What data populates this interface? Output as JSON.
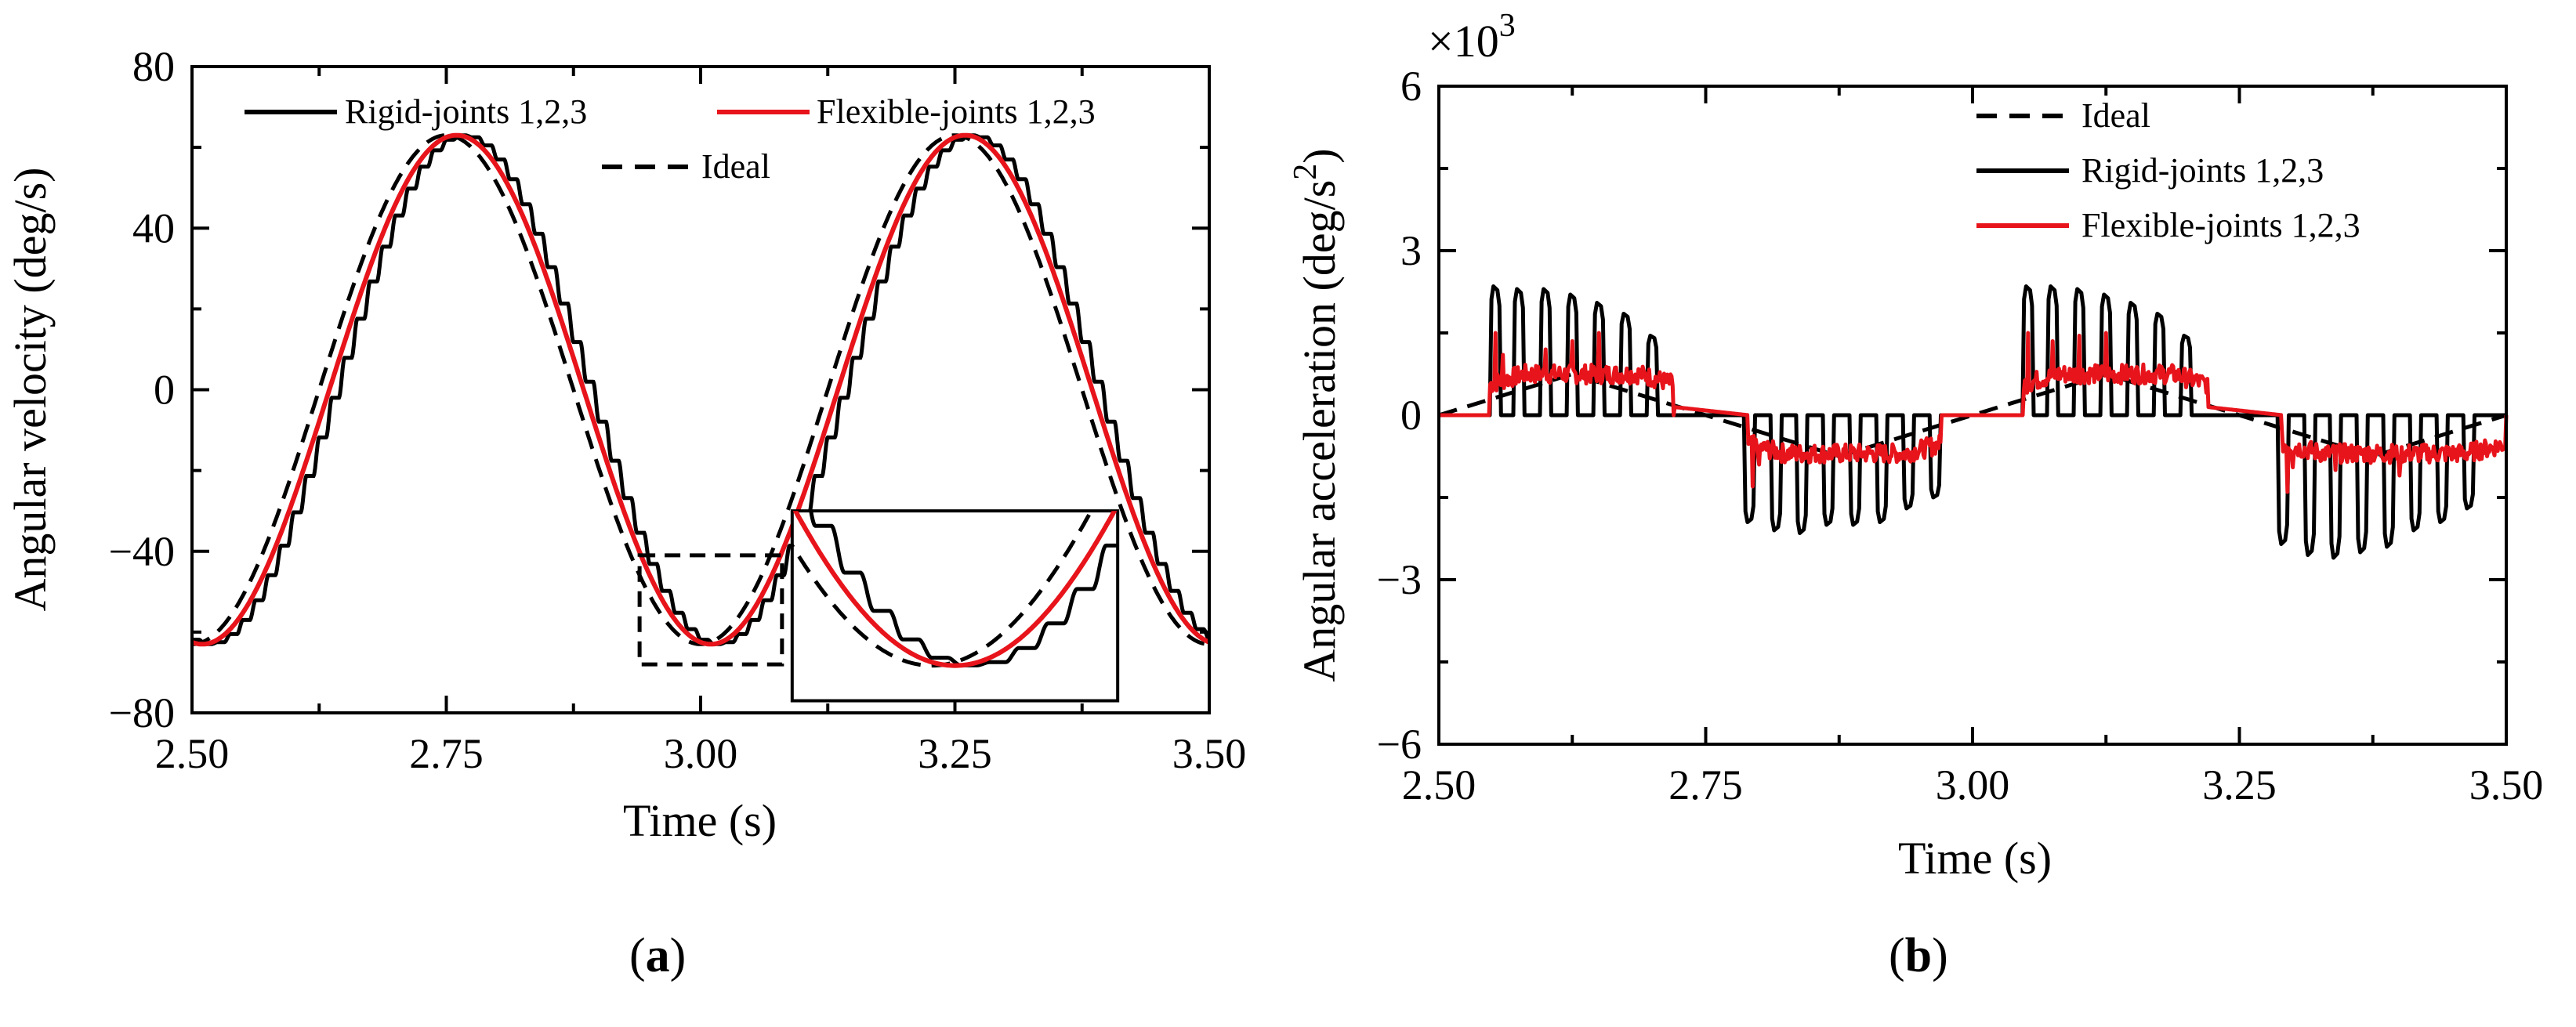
{
  "colors": {
    "rigid": "#000000",
    "flexible": "#e8141b",
    "ideal": "#000000"
  },
  "chart_data": [
    {
      "id": "a",
      "type": "line",
      "subfigure_label": "a",
      "xlabel": "Time (s)",
      "ylabel": "Angular velocity (deg/s)",
      "xlim": [
        2.5,
        3.5
      ],
      "ylim": [
        -80,
        80
      ],
      "xticks": [
        "2.50",
        "2.75",
        "3.00",
        "3.25",
        "3.50"
      ],
      "yticks": [
        "−80",
        "−40",
        "0",
        "40",
        "80"
      ],
      "legend": {
        "rigid": "Rigid-joints 1,2,3",
        "flexible": "Flexible-joints 1,2,3",
        "ideal": "Ideal"
      },
      "series": [
        {
          "name": "Ideal",
          "style": "dashed",
          "model": "sine",
          "amplitude": 63,
          "period": 0.5,
          "peak_at": 2.75,
          "x_range": [
            2.5,
            3.5
          ]
        },
        {
          "name": "Rigid-joints 1,2,3",
          "style": "staircase",
          "model": "sine",
          "amplitude": 63,
          "period": 0.5,
          "peak_at": 2.765,
          "step_period": 0.0125
        },
        {
          "name": "Flexible-joints 1,2,3",
          "style": "solid",
          "model": "sine",
          "amplitude": 63,
          "period": 0.5,
          "peak_at": 2.76,
          "x_range": [
            2.5,
            3.5
          ]
        }
      ],
      "dashed_box": {
        "x": [
          2.94,
          3.08
        ],
        "y": [
          -68,
          -41
        ]
      },
      "inset": {
        "x": [
          3.09,
          3.41
        ],
        "y": [
          -77,
          -30
        ]
      }
    },
    {
      "id": "b",
      "type": "line",
      "subfigure_label": "b",
      "xlabel": "Time (s)",
      "ylabel": "Angular acceleration (deg/s",
      "ylabel_sup": "2",
      "ylabel_end": ")",
      "scale_label": "×10",
      "scale_exp": "3",
      "xlim": [
        2.5,
        3.5
      ],
      "ylim": [
        -6,
        6
      ],
      "xticks": [
        "2.50",
        "2.75",
        "3.00",
        "3.25",
        "3.50"
      ],
      "yticks": [
        "−6",
        "−3",
        "0",
        "3",
        "6"
      ],
      "legend": {
        "ideal": "Ideal",
        "rigid": "Rigid-joints 1,2,3",
        "flexible": "Flexible-joints 1,2,3"
      },
      "series": [
        {
          "name": "Ideal",
          "style": "dashed",
          "note": "triangle wave, zero at 2.50, 2.75, 3.00, 3.25, 3.50",
          "peak": 0.75
        },
        {
          "name": "Rigid-joints 1,2,3",
          "style": "pulse train",
          "positive_pulses": [
            [
              2.553,
              2.35
            ],
            [
              2.575,
              2.3
            ],
            [
              2.6,
              2.3
            ],
            [
              2.625,
              2.2
            ],
            [
              2.65,
              2.05
            ],
            [
              2.675,
              1.85
            ],
            [
              2.7,
              1.45
            ],
            [
              3.052,
              2.35
            ],
            [
              3.075,
              2.35
            ],
            [
              3.1,
              2.3
            ],
            [
              3.125,
              2.2
            ],
            [
              3.15,
              2.05
            ],
            [
              3.175,
              1.85
            ],
            [
              3.2,
              1.45
            ]
          ],
          "negative_pulses": [
            [
              2.791,
              -1.95
            ],
            [
              2.816,
              -2.1
            ],
            [
              2.84,
              -2.15
            ],
            [
              2.865,
              -2.0
            ],
            [
              2.89,
              -2.0
            ],
            [
              2.915,
              -1.95
            ],
            [
              2.94,
              -1.7
            ],
            [
              2.965,
              -1.5
            ],
            [
              3.291,
              -2.35
            ],
            [
              3.316,
              -2.55
            ],
            [
              3.34,
              -2.6
            ],
            [
              3.365,
              -2.5
            ],
            [
              3.39,
              -2.4
            ],
            [
              3.415,
              -2.1
            ],
            [
              3.44,
              -1.95
            ],
            [
              3.465,
              -1.7
            ]
          ]
        },
        {
          "name": "Flexible-joints 1,2,3",
          "style": "solid",
          "note": "noisy, roughly 0.75 in positive half, -0.7 in negative half",
          "level": 0.75,
          "spike_pos": 1.5,
          "spike_neg": -1.3
        }
      ]
    }
  ]
}
